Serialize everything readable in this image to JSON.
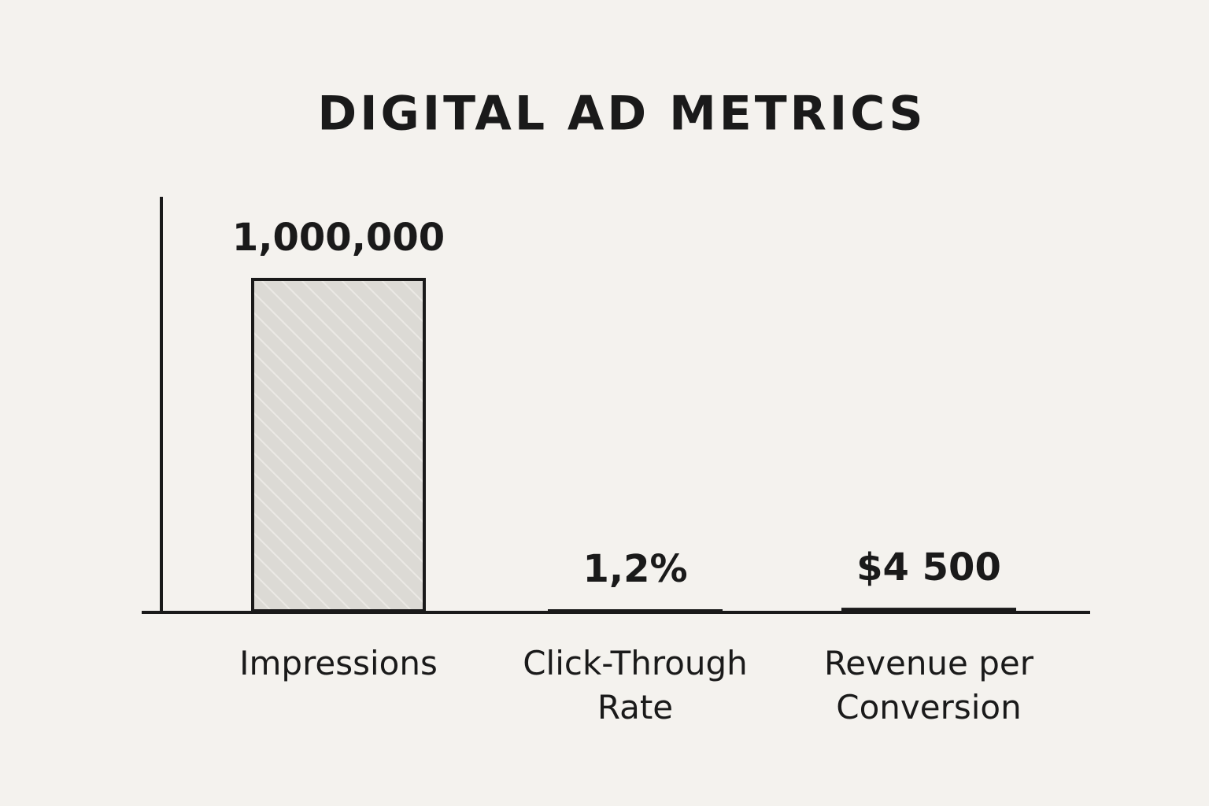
{
  "chart_data": {
    "type": "bar",
    "title": "DIGITAL AD METRICS",
    "categories": [
      "Impressions",
      "Click-Through Rate",
      "Revenue per Conversion"
    ],
    "values": [
      1000000,
      1.2,
      4500
    ],
    "value_labels": [
      "1,000,000",
      "1,2%",
      "$4 500"
    ],
    "color": "#dcdad5"
  }
}
